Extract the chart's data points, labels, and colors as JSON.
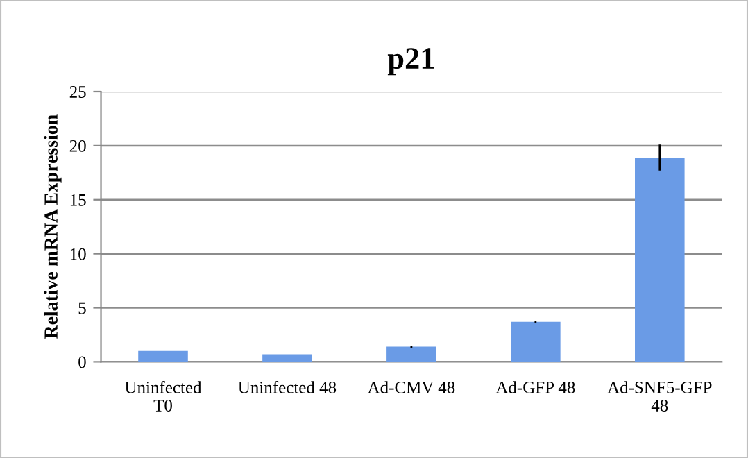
{
  "chart_data": {
    "type": "bar",
    "title": "p21",
    "ylabel": "Relative mRNA Expression",
    "categories": [
      "Uninfected\nT0",
      "Uninfected 48",
      "Ad-CMV 48",
      "Ad-GFP 48",
      "Ad-SNF5-GFP\n48"
    ],
    "values": [
      1.0,
      0.7,
      1.4,
      3.7,
      18.9
    ],
    "errors": [
      null,
      null,
      0.1,
      0.1,
      1.2
    ],
    "color": "#6a9be6",
    "ylim": [
      0,
      25
    ],
    "yticks": [
      0,
      5,
      10,
      15,
      20,
      25
    ],
    "grid": "y"
  }
}
